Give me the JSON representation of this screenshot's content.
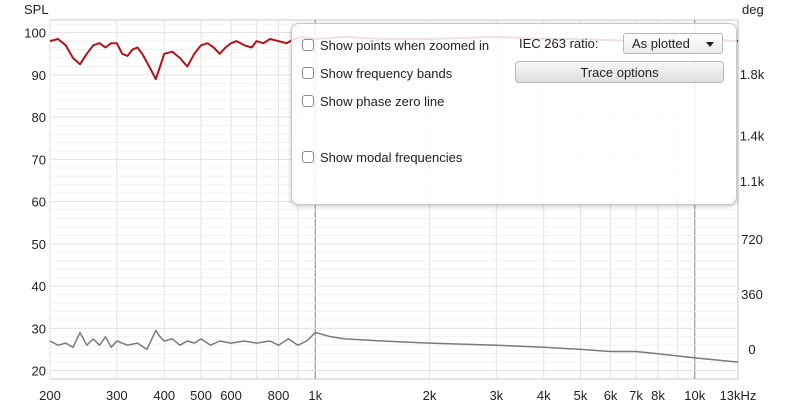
{
  "chart_data": {
    "type": "line",
    "y_left_label": "SPL",
    "y_right_label": "deg",
    "x_unit_label": "Hz",
    "x_scale": "log",
    "xlim": [
      200,
      13000
    ],
    "ylim_left": [
      18,
      103
    ],
    "ylim_right": [
      -195,
      2155
    ],
    "x_ticks": [
      {
        "v": 200,
        "t": "200"
      },
      {
        "v": 300,
        "t": "300"
      },
      {
        "v": 400,
        "t": "400"
      },
      {
        "v": 500,
        "t": "500"
      },
      {
        "v": 600,
        "t": "600"
      },
      {
        "v": 800,
        "t": "800"
      },
      {
        "v": 1000,
        "t": "1k"
      },
      {
        "v": 2000,
        "t": "2k"
      },
      {
        "v": 3000,
        "t": "3k"
      },
      {
        "v": 4000,
        "t": "4k"
      },
      {
        "v": 5000,
        "t": "5k"
      },
      {
        "v": 6000,
        "t": "6k"
      },
      {
        "v": 7000,
        "t": "7k"
      },
      {
        "v": 8000,
        "t": "8k"
      },
      {
        "v": 10000,
        "t": "10k"
      },
      {
        "v": 13000,
        "t": "13kHz"
      }
    ],
    "y_left_ticks": [
      20,
      30,
      40,
      50,
      60,
      70,
      80,
      90,
      100
    ],
    "y_right_ticks": [
      {
        "v": 0,
        "t": "0"
      },
      {
        "v": 360,
        "t": "360"
      },
      {
        "v": 720,
        "t": "720"
      },
      {
        "v": 1100,
        "t": "1.1k"
      },
      {
        "v": 1400,
        "t": "1.4k"
      },
      {
        "v": 1800,
        "t": "1.8k"
      }
    ],
    "grid": true,
    "series": [
      {
        "color": "#b0141b",
        "x": [
          200,
          210,
          220,
          230,
          240,
          250,
          260,
          270,
          280,
          290,
          300,
          310,
          320,
          330,
          340,
          350,
          360,
          370,
          380,
          390,
          400,
          420,
          440,
          460,
          480,
          500,
          520,
          540,
          560,
          580,
          600,
          620,
          650,
          680,
          700,
          730,
          760,
          800,
          840,
          880,
          920,
          1000,
          1200,
          1500,
          2000,
          3000,
          4000,
          5000,
          7000,
          10000,
          13000
        ],
        "y": [
          98,
          98.5,
          97,
          94,
          92.5,
          95,
          97,
          97.5,
          96.5,
          97.5,
          97.5,
          95,
          94.5,
          96,
          96.5,
          95,
          93,
          91,
          89,
          92,
          95,
          95.5,
          94,
          92,
          95,
          97,
          97.5,
          96.5,
          95,
          96.5,
          97.5,
          98,
          97,
          96.5,
          98,
          97.5,
          98.5,
          98,
          97.5,
          98.5,
          99,
          98.5,
          99,
          98.5,
          98.5,
          99,
          98.5,
          98.5,
          98,
          98.5,
          98
        ]
      },
      {
        "color": "#7a7a7a",
        "x": [
          200,
          210,
          220,
          230,
          240,
          250,
          260,
          270,
          280,
          290,
          300,
          320,
          340,
          360,
          380,
          390,
          400,
          420,
          440,
          460,
          480,
          500,
          530,
          560,
          600,
          650,
          700,
          760,
          800,
          850,
          900,
          950,
          1000,
          1100,
          1200,
          1500,
          2000,
          3000,
          4000,
          5000,
          6000,
          7000,
          8000,
          10000,
          13000
        ],
        "y": [
          27,
          26,
          26.5,
          25.5,
          29,
          26,
          27.5,
          26,
          28,
          25.5,
          27,
          26,
          26.5,
          25,
          29.5,
          28,
          27,
          27.5,
          26,
          27,
          26.5,
          27.5,
          26,
          27,
          26.5,
          27,
          26.5,
          27,
          26,
          27.5,
          26,
          27,
          29,
          28,
          27.5,
          27,
          26.5,
          26,
          25.5,
          25,
          24.5,
          24.5,
          24,
          23,
          22
        ]
      }
    ]
  },
  "options_panel": {
    "show_points_label": "Show points when zoomed in",
    "show_points_checked": false,
    "show_bands_label": "Show frequency bands",
    "show_bands_checked": false,
    "show_phase_label": "Show phase zero line",
    "show_phase_checked": false,
    "show_modal_label": "Show modal frequencies",
    "show_modal_checked": false,
    "iec_label": "IEC 263 ratio:",
    "iec_value": "As plotted",
    "trace_button": "Trace options"
  }
}
